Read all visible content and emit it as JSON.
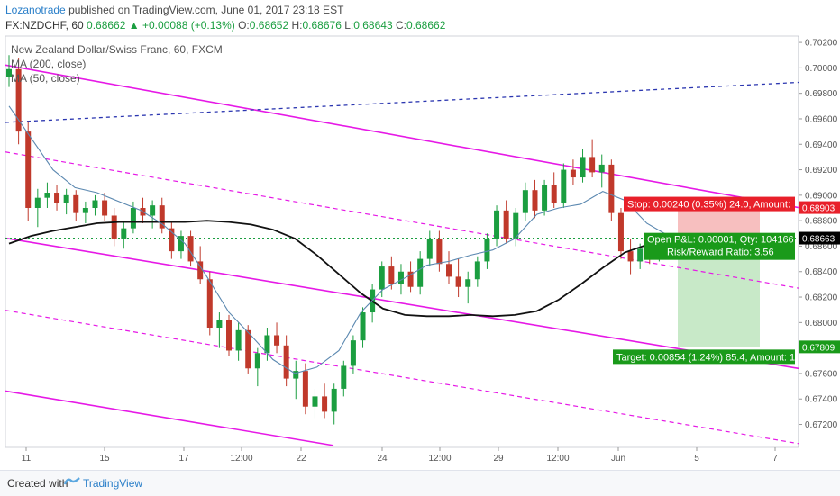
{
  "header": {
    "author": "Lozanotrade",
    "published_text": "published on TradingView.com, June 01, 2017 23:18 EST",
    "symbol": "FX:NZDCHF, 60",
    "last": "0.68662",
    "change": "+0.00088 (+0.13%)",
    "o_label": "O:",
    "o": "0.68652",
    "h_label": "H:",
    "h": "0.68676",
    "l_label": "L:",
    "l": "0.68643",
    "c_label": "C:",
    "c": "0.68662"
  },
  "legend": {
    "title": "New Zealand Dollar/Swiss Franc, 60, FXCM",
    "ma200": "MA (200, close)",
    "ma50": "MA (50, close)"
  },
  "footer": {
    "created_with": "Created with",
    "brand": "TradingView"
  },
  "colors": {
    "up": "#1b9e40",
    "down": "#c0392b",
    "channel": "#e619e6",
    "trend": "#2b36b0",
    "ma200": "#111111",
    "ma50": "#5b88b0",
    "last_price": "#1b9e40",
    "stop_box": "#f4a9a9",
    "target_box": "#b6e2b6",
    "stop_label": "#e8202a",
    "target_label": "#1a9a1a"
  },
  "chart_data": {
    "type": "candlestick",
    "ylim": [
      0.6702,
      0.7025
    ],
    "y_ticks": [
      "0.67200",
      "0.67400",
      "0.67600",
      "0.67800",
      "0.68000",
      "0.68200",
      "0.68400",
      "0.68600",
      "0.68800",
      "0.69000",
      "0.69200",
      "0.69400",
      "0.69600",
      "0.69800",
      "0.70000",
      "0.70200"
    ],
    "x_ticks": [
      "11",
      "15",
      "17",
      "12:00",
      "22",
      "24",
      "12:00",
      "29",
      "12:00",
      "Jun",
      "5",
      "7"
    ],
    "price_labels": {
      "stop": "0.68903",
      "last": "0.68663",
      "target": "0.67809"
    },
    "position": {
      "entry": 0.68662,
      "stop": 0.68903,
      "target": 0.67809,
      "stop_text": "Stop: 0.00240 (0.35%) 24.0, Amount: ",
      "target_text": "Target: 0.00854 (1.24%) 85.4, Amount: 1",
      "open_pl_text": "Open P&L: 0.00001, Qty: 104166",
      "rr_text": "Risk/Reward Ratio: 3.56"
    },
    "series": [
      {
        "name": "MA (200, close)",
        "values": [
          0.6862,
          0.6868,
          0.6872,
          0.6875,
          0.6878,
          0.6879,
          0.6879,
          0.6879,
          0.6879,
          0.688,
          0.6879,
          0.6877,
          0.6873,
          0.6866,
          0.6853,
          0.6838,
          0.6823,
          0.6811,
          0.6806,
          0.6805,
          0.6805,
          0.6806,
          0.6805,
          0.6806,
          0.6809,
          0.6818,
          0.683,
          0.6843,
          0.6855,
          0.6861,
          0.6866
        ]
      },
      {
        "name": "MA (50, close)",
        "values": [
          0.697,
          0.6945,
          0.692,
          0.6906,
          0.6902,
          0.6895,
          0.6888,
          0.6877,
          0.6862,
          0.6836,
          0.6808,
          0.679,
          0.6771,
          0.676,
          0.6765,
          0.6778,
          0.6808,
          0.6826,
          0.6835,
          0.6845,
          0.6848,
          0.6853,
          0.6857,
          0.6866,
          0.6885,
          0.689,
          0.6893,
          0.6903,
          0.6896,
          0.6878,
          0.6868
        ]
      }
    ],
    "candles": [
      [
        0.6993,
        0.701,
        0.6985,
        0.6999
      ],
      [
        0.6999,
        0.7008,
        0.694,
        0.695
      ],
      [
        0.695,
        0.6958,
        0.688,
        0.689
      ],
      [
        0.689,
        0.6905,
        0.6875,
        0.6898
      ],
      [
        0.6898,
        0.691,
        0.689,
        0.6902
      ],
      [
        0.6902,
        0.6908,
        0.6888,
        0.6894
      ],
      [
        0.6894,
        0.6905,
        0.6885,
        0.69
      ],
      [
        0.69,
        0.6904,
        0.688,
        0.6886
      ],
      [
        0.6886,
        0.6895,
        0.6878,
        0.689
      ],
      [
        0.689,
        0.69,
        0.6884,
        0.6896
      ],
      [
        0.6896,
        0.6902,
        0.688,
        0.6884
      ],
      [
        0.6884,
        0.689,
        0.686,
        0.6866
      ],
      [
        0.6866,
        0.688,
        0.6858,
        0.6874
      ],
      [
        0.6874,
        0.6895,
        0.687,
        0.689
      ],
      [
        0.689,
        0.6898,
        0.6878,
        0.6884
      ],
      [
        0.6884,
        0.6896,
        0.6874,
        0.6892
      ],
      [
        0.6892,
        0.6898,
        0.687,
        0.6874
      ],
      [
        0.6874,
        0.688,
        0.685,
        0.6856
      ],
      [
        0.6856,
        0.6872,
        0.685,
        0.6868
      ],
      [
        0.6868,
        0.6872,
        0.6844,
        0.6848
      ],
      [
        0.6848,
        0.686,
        0.683,
        0.6834
      ],
      [
        0.6834,
        0.684,
        0.679,
        0.6796
      ],
      [
        0.6796,
        0.6808,
        0.678,
        0.6802
      ],
      [
        0.6802,
        0.6806,
        0.6774,
        0.6778
      ],
      [
        0.6778,
        0.68,
        0.677,
        0.6794
      ],
      [
        0.6794,
        0.6798,
        0.676,
        0.6764
      ],
      [
        0.6764,
        0.678,
        0.675,
        0.6776
      ],
      [
        0.6776,
        0.6796,
        0.677,
        0.679
      ],
      [
        0.679,
        0.68,
        0.6776,
        0.6782
      ],
      [
        0.6782,
        0.679,
        0.675,
        0.6756
      ],
      [
        0.6756,
        0.677,
        0.674,
        0.6762
      ],
      [
        0.6762,
        0.6768,
        0.6728,
        0.6734
      ],
      [
        0.6734,
        0.6748,
        0.6725,
        0.6742
      ],
      [
        0.6742,
        0.6752,
        0.6725,
        0.673
      ],
      [
        0.673,
        0.6752,
        0.672,
        0.6748
      ],
      [
        0.6748,
        0.677,
        0.6742,
        0.6766
      ],
      [
        0.6766,
        0.679,
        0.676,
        0.6786
      ],
      [
        0.6786,
        0.6812,
        0.678,
        0.6808
      ],
      [
        0.6808,
        0.683,
        0.68,
        0.6826
      ],
      [
        0.6826,
        0.6848,
        0.682,
        0.6844
      ],
      [
        0.6844,
        0.6852,
        0.6826,
        0.683
      ],
      [
        0.683,
        0.6846,
        0.6822,
        0.684
      ],
      [
        0.684,
        0.6848,
        0.6824,
        0.6828
      ],
      [
        0.6828,
        0.6856,
        0.6822,
        0.685
      ],
      [
        0.685,
        0.6872,
        0.6844,
        0.6866
      ],
      [
        0.6866,
        0.6872,
        0.684,
        0.6846
      ],
      [
        0.6846,
        0.6856,
        0.683,
        0.6836
      ],
      [
        0.6836,
        0.685,
        0.682,
        0.6828
      ],
      [
        0.6828,
        0.684,
        0.6815,
        0.6834
      ],
      [
        0.6834,
        0.6852,
        0.6828,
        0.6848
      ],
      [
        0.6848,
        0.687,
        0.6842,
        0.6866
      ],
      [
        0.6866,
        0.6892,
        0.686,
        0.6888
      ],
      [
        0.6888,
        0.6896,
        0.6862,
        0.6866
      ],
      [
        0.6866,
        0.689,
        0.686,
        0.6886
      ],
      [
        0.6886,
        0.691,
        0.688,
        0.6904
      ],
      [
        0.6904,
        0.6912,
        0.6882,
        0.6888
      ],
      [
        0.6888,
        0.6912,
        0.6884,
        0.6908
      ],
      [
        0.6908,
        0.6918,
        0.689,
        0.6894
      ],
      [
        0.6894,
        0.6925,
        0.689,
        0.692
      ],
      [
        0.692,
        0.6928,
        0.6908,
        0.6914
      ],
      [
        0.6914,
        0.6936,
        0.691,
        0.693
      ],
      [
        0.693,
        0.6944,
        0.6914,
        0.6918
      ],
      [
        0.6918,
        0.6932,
        0.6906,
        0.6924
      ],
      [
        0.6924,
        0.6928,
        0.688,
        0.6886
      ],
      [
        0.6886,
        0.689,
        0.685,
        0.6856
      ],
      [
        0.6856,
        0.6866,
        0.6838,
        0.6848
      ],
      [
        0.6848,
        0.6862,
        0.6842,
        0.6858
      ],
      [
        0.6858,
        0.6868,
        0.6846,
        0.6852
      ],
      [
        0.6852,
        0.6868,
        0.6848,
        0.6862
      ],
      [
        0.6862,
        0.687,
        0.6852,
        0.6866
      ]
    ]
  }
}
